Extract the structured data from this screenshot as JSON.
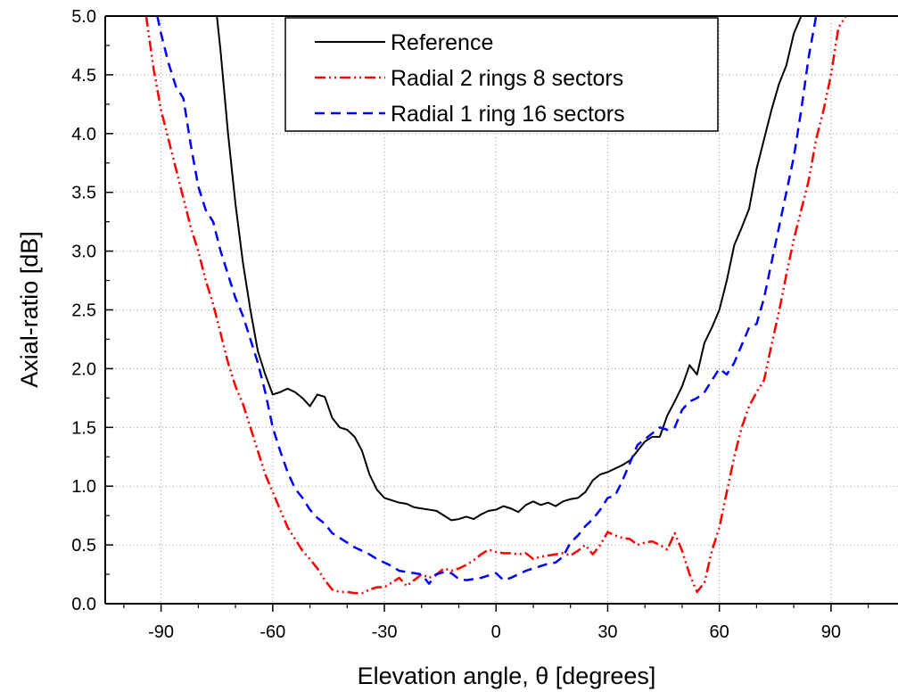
{
  "chart_data": {
    "type": "line",
    "title": "",
    "xlabel": "Elevation angle, θ [degrees]",
    "ylabel": "Axial-ratio [dB]",
    "xlim": [
      -105,
      108
    ],
    "ylim": [
      0,
      5
    ],
    "xticks": [
      -90,
      -60,
      -30,
      0,
      30,
      60,
      90
    ],
    "xtick_labels": [
      "-90",
      "-60",
      "-30",
      "0",
      "30",
      "60",
      "90"
    ],
    "yticks": [
      0,
      0.5,
      1,
      1.5,
      2,
      2.5,
      3,
      3.5,
      4,
      4.5,
      5
    ],
    "ytick_labels": [
      "0.0",
      "0.5",
      "1.0",
      "1.5",
      "2.0",
      "2.5",
      "3.0",
      "3.5",
      "4.0",
      "4.5",
      "5.0"
    ],
    "grid": true,
    "legend_position": "top-center",
    "series": [
      {
        "name": "Reference",
        "color": "#000000",
        "dash": "solid",
        "points": [
          [
            -75,
            5.0
          ],
          [
            -74,
            4.7
          ],
          [
            -72,
            4.0
          ],
          [
            -70,
            3.4
          ],
          [
            -68,
            2.9
          ],
          [
            -66,
            2.5
          ],
          [
            -64,
            2.15
          ],
          [
            -62,
            1.95
          ],
          [
            -60,
            1.78
          ],
          [
            -58,
            1.8
          ],
          [
            -56,
            1.83
          ],
          [
            -54,
            1.8
          ],
          [
            -52,
            1.75
          ],
          [
            -50,
            1.68
          ],
          [
            -48,
            1.78
          ],
          [
            -46,
            1.76
          ],
          [
            -44,
            1.58
          ],
          [
            -42,
            1.5
          ],
          [
            -40,
            1.48
          ],
          [
            -38,
            1.42
          ],
          [
            -36,
            1.3
          ],
          [
            -34,
            1.1
          ],
          [
            -32,
            0.97
          ],
          [
            -30,
            0.9
          ],
          [
            -28,
            0.88
          ],
          [
            -26,
            0.86
          ],
          [
            -24,
            0.85
          ],
          [
            -22,
            0.82
          ],
          [
            -20,
            0.81
          ],
          [
            -18,
            0.8
          ],
          [
            -16,
            0.79
          ],
          [
            -14,
            0.75
          ],
          [
            -12,
            0.71
          ],
          [
            -10,
            0.72
          ],
          [
            -8,
            0.74
          ],
          [
            -6,
            0.72
          ],
          [
            -4,
            0.76
          ],
          [
            -2,
            0.79
          ],
          [
            0,
            0.8
          ],
          [
            2,
            0.83
          ],
          [
            4,
            0.81
          ],
          [
            6,
            0.78
          ],
          [
            8,
            0.84
          ],
          [
            10,
            0.87
          ],
          [
            12,
            0.84
          ],
          [
            14,
            0.86
          ],
          [
            16,
            0.83
          ],
          [
            18,
            0.87
          ],
          [
            20,
            0.89
          ],
          [
            22,
            0.9
          ],
          [
            24,
            0.95
          ],
          [
            26,
            1.05
          ],
          [
            28,
            1.1
          ],
          [
            30,
            1.12
          ],
          [
            32,
            1.15
          ],
          [
            34,
            1.18
          ],
          [
            36,
            1.22
          ],
          [
            38,
            1.3
          ],
          [
            40,
            1.38
          ],
          [
            42,
            1.42
          ],
          [
            44,
            1.42
          ],
          [
            46,
            1.6
          ],
          [
            48,
            1.72
          ],
          [
            50,
            1.85
          ],
          [
            52,
            2.03
          ],
          [
            54,
            1.95
          ],
          [
            56,
            2.22
          ],
          [
            58,
            2.35
          ],
          [
            60,
            2.5
          ],
          [
            62,
            2.75
          ],
          [
            64,
            3.05
          ],
          [
            66,
            3.2
          ],
          [
            68,
            3.36
          ],
          [
            70,
            3.7
          ],
          [
            72,
            3.95
          ],
          [
            74,
            4.2
          ],
          [
            76,
            4.42
          ],
          [
            78,
            4.58
          ],
          [
            80,
            4.85
          ],
          [
            82,
            5.0
          ]
        ]
      },
      {
        "name": "Radial 2 rings 8 sectors",
        "color": "#ff0000",
        "dash": "dash-dot-dot",
        "points": [
          [
            -94,
            5.0
          ],
          [
            -92,
            4.55
          ],
          [
            -90,
            4.2
          ],
          [
            -88,
            3.95
          ],
          [
            -86,
            3.7
          ],
          [
            -84,
            3.45
          ],
          [
            -82,
            3.2
          ],
          [
            -80,
            3.0
          ],
          [
            -78,
            2.75
          ],
          [
            -76,
            2.55
          ],
          [
            -74,
            2.3
          ],
          [
            -72,
            2.05
          ],
          [
            -70,
            1.85
          ],
          [
            -68,
            1.7
          ],
          [
            -66,
            1.5
          ],
          [
            -64,
            1.3
          ],
          [
            -62,
            1.1
          ],
          [
            -60,
            0.95
          ],
          [
            -58,
            0.8
          ],
          [
            -56,
            0.65
          ],
          [
            -54,
            0.55
          ],
          [
            -52,
            0.45
          ],
          [
            -50,
            0.38
          ],
          [
            -48,
            0.3
          ],
          [
            -46,
            0.2
          ],
          [
            -44,
            0.12
          ],
          [
            -42,
            0.1
          ],
          [
            -40,
            0.1
          ],
          [
            -38,
            0.09
          ],
          [
            -36,
            0.09
          ],
          [
            -34,
            0.12
          ],
          [
            -32,
            0.14
          ],
          [
            -30,
            0.14
          ],
          [
            -28,
            0.18
          ],
          [
            -26,
            0.22
          ],
          [
            -24,
            0.15
          ],
          [
            -22,
            0.2
          ],
          [
            -20,
            0.25
          ],
          [
            -18,
            0.22
          ],
          [
            -16,
            0.25
          ],
          [
            -14,
            0.3
          ],
          [
            -12,
            0.28
          ],
          [
            -10,
            0.3
          ],
          [
            -8,
            0.33
          ],
          [
            -6,
            0.37
          ],
          [
            -4,
            0.42
          ],
          [
            -2,
            0.46
          ],
          [
            0,
            0.44
          ],
          [
            2,
            0.43
          ],
          [
            4,
            0.43
          ],
          [
            6,
            0.42
          ],
          [
            8,
            0.43
          ],
          [
            10,
            0.38
          ],
          [
            12,
            0.4
          ],
          [
            14,
            0.41
          ],
          [
            16,
            0.42
          ],
          [
            18,
            0.43
          ],
          [
            20,
            0.41
          ],
          [
            22,
            0.45
          ],
          [
            24,
            0.5
          ],
          [
            26,
            0.42
          ],
          [
            28,
            0.5
          ],
          [
            30,
            0.61
          ],
          [
            32,
            0.58
          ],
          [
            34,
            0.56
          ],
          [
            36,
            0.55
          ],
          [
            38,
            0.5
          ],
          [
            40,
            0.52
          ],
          [
            42,
            0.53
          ],
          [
            44,
            0.5
          ],
          [
            46,
            0.46
          ],
          [
            48,
            0.6
          ],
          [
            50,
            0.45
          ],
          [
            52,
            0.25
          ],
          [
            54,
            0.1
          ],
          [
            56,
            0.18
          ],
          [
            58,
            0.45
          ],
          [
            60,
            0.65
          ],
          [
            62,
            0.95
          ],
          [
            64,
            1.25
          ],
          [
            66,
            1.5
          ],
          [
            68,
            1.68
          ],
          [
            70,
            1.8
          ],
          [
            72,
            1.9
          ],
          [
            74,
            2.2
          ],
          [
            76,
            2.48
          ],
          [
            78,
            2.8
          ],
          [
            80,
            3.1
          ],
          [
            82,
            3.35
          ],
          [
            84,
            3.6
          ],
          [
            86,
            3.95
          ],
          [
            88,
            4.2
          ],
          [
            90,
            4.5
          ],
          [
            92,
            4.9
          ],
          [
            94,
            5.0
          ]
        ]
      },
      {
        "name": "Radial 1 ring 16 sectors",
        "color": "#0000ff",
        "dash": "dash",
        "points": [
          [
            -91,
            5.0
          ],
          [
            -90,
            4.85
          ],
          [
            -88,
            4.6
          ],
          [
            -86,
            4.4
          ],
          [
            -84,
            4.3
          ],
          [
            -82,
            3.9
          ],
          [
            -80,
            3.55
          ],
          [
            -78,
            3.35
          ],
          [
            -76,
            3.25
          ],
          [
            -74,
            3.0
          ],
          [
            -72,
            2.8
          ],
          [
            -70,
            2.6
          ],
          [
            -68,
            2.45
          ],
          [
            -66,
            2.25
          ],
          [
            -64,
            2.05
          ],
          [
            -62,
            1.8
          ],
          [
            -60,
            1.5
          ],
          [
            -58,
            1.3
          ],
          [
            -56,
            1.12
          ],
          [
            -54,
            0.98
          ],
          [
            -52,
            0.9
          ],
          [
            -50,
            0.8
          ],
          [
            -48,
            0.73
          ],
          [
            -46,
            0.68
          ],
          [
            -44,
            0.6
          ],
          [
            -42,
            0.56
          ],
          [
            -40,
            0.52
          ],
          [
            -38,
            0.48
          ],
          [
            -36,
            0.45
          ],
          [
            -34,
            0.42
          ],
          [
            -32,
            0.38
          ],
          [
            -30,
            0.35
          ],
          [
            -28,
            0.32
          ],
          [
            -26,
            0.28
          ],
          [
            -24,
            0.27
          ],
          [
            -22,
            0.26
          ],
          [
            -20,
            0.25
          ],
          [
            -18,
            0.17
          ],
          [
            -16,
            0.25
          ],
          [
            -14,
            0.27
          ],
          [
            -12,
            0.26
          ],
          [
            -10,
            0.21
          ],
          [
            -8,
            0.2
          ],
          [
            -6,
            0.21
          ],
          [
            -4,
            0.22
          ],
          [
            -2,
            0.24
          ],
          [
            0,
            0.26
          ],
          [
            2,
            0.2
          ],
          [
            4,
            0.22
          ],
          [
            6,
            0.25
          ],
          [
            8,
            0.28
          ],
          [
            10,
            0.3
          ],
          [
            12,
            0.32
          ],
          [
            14,
            0.34
          ],
          [
            16,
            0.35
          ],
          [
            18,
            0.4
          ],
          [
            20,
            0.52
          ],
          [
            22,
            0.58
          ],
          [
            24,
            0.66
          ],
          [
            26,
            0.72
          ],
          [
            28,
            0.8
          ],
          [
            30,
            0.9
          ],
          [
            32,
            0.92
          ],
          [
            34,
            1.05
          ],
          [
            36,
            1.2
          ],
          [
            38,
            1.35
          ],
          [
            40,
            1.4
          ],
          [
            42,
            1.45
          ],
          [
            44,
            1.5
          ],
          [
            46,
            1.48
          ],
          [
            48,
            1.5
          ],
          [
            50,
            1.65
          ],
          [
            52,
            1.72
          ],
          [
            54,
            1.75
          ],
          [
            56,
            1.8
          ],
          [
            58,
            1.9
          ],
          [
            60,
            2.0
          ],
          [
            62,
            1.95
          ],
          [
            64,
            2.05
          ],
          [
            66,
            2.2
          ],
          [
            68,
            2.35
          ],
          [
            70,
            2.38
          ],
          [
            72,
            2.6
          ],
          [
            74,
            2.9
          ],
          [
            76,
            3.2
          ],
          [
            78,
            3.5
          ],
          [
            80,
            3.8
          ],
          [
            82,
            4.2
          ],
          [
            84,
            4.65
          ],
          [
            86,
            5.0
          ]
        ]
      }
    ]
  }
}
